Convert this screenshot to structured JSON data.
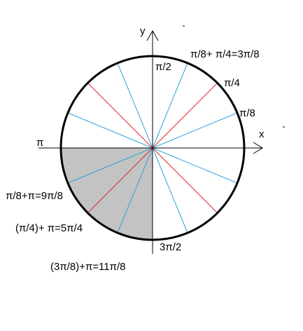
{
  "axes": {
    "x": "x",
    "y": "y"
  },
  "labels": {
    "pi_over_2": "π/2",
    "three_pi_over_8": "π/8+ π/4=3π/8",
    "pi_over_4": "π/4",
    "pi_over_8": "π/8",
    "pi": "π",
    "nine_pi_over_8": "π/8+π=9π/8",
    "five_pi_over_4": "(π/4)+ π=5π/4",
    "three_pi_over_2": "3π/2",
    "eleven_pi_over_8": "(3π/8)+π=11π/8"
  }
}
